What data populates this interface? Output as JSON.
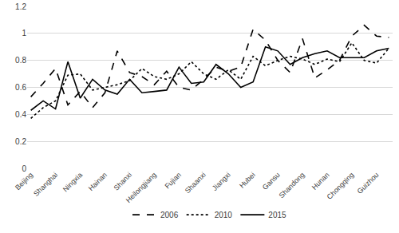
{
  "chart_data": {
    "type": "line",
    "categories": [
      "Beijing",
      null,
      "Shanghai",
      null,
      "Ningxia",
      null,
      "Hainan",
      null,
      "Shanxi",
      null,
      "Heilongjiang",
      null,
      "Fujian",
      null,
      "Shaanxi",
      null,
      "Jiangxi",
      null,
      "Hubei",
      null,
      "Gansu",
      null,
      "Shandong",
      null,
      "Hunan",
      null,
      "Chongqing",
      null,
      "Guizhou",
      null
    ],
    "series": [
      {
        "name": "2006",
        "color": "#000000",
        "line_style": "dash",
        "values": [
          0.53,
          0.63,
          0.74,
          0.47,
          0.57,
          0.45,
          0.56,
          0.87,
          0.71,
          0.68,
          0.62,
          0.72,
          0.6,
          0.58,
          0.66,
          0.75,
          0.72,
          0.75,
          1.03,
          0.95,
          0.8,
          0.71,
          0.96,
          0.67,
          0.73,
          0.8,
          0.98,
          1.06,
          0.98,
          0.97
        ]
      },
      {
        "name": "2010",
        "color": "#000000",
        "line_style": "dot",
        "values": [
          0.37,
          0.45,
          0.5,
          0.69,
          0.7,
          0.58,
          0.6,
          0.62,
          0.65,
          0.74,
          0.68,
          0.66,
          0.7,
          0.79,
          0.7,
          0.66,
          0.73,
          0.66,
          0.83,
          0.76,
          0.8,
          0.83,
          0.81,
          0.77,
          0.81,
          0.79,
          0.93,
          0.8,
          0.78,
          0.89
        ]
      },
      {
        "name": "2015",
        "color": "#000000",
        "line_style": "solid",
        "values": [
          0.43,
          0.5,
          0.44,
          0.79,
          0.52,
          0.66,
          0.58,
          0.55,
          0.66,
          0.56,
          0.57,
          0.58,
          0.75,
          0.63,
          0.64,
          0.77,
          0.7,
          0.6,
          0.64,
          0.9,
          0.87,
          0.77,
          0.82,
          0.85,
          0.87,
          0.82,
          0.82,
          0.82,
          0.87,
          0.89
        ]
      }
    ],
    "ylim": [
      0,
      1.2
    ],
    "yticks": [
      0,
      0.2,
      0.4,
      0.6,
      0.8,
      1,
      1.2
    ],
    "grid": true,
    "legend": "bottom"
  }
}
